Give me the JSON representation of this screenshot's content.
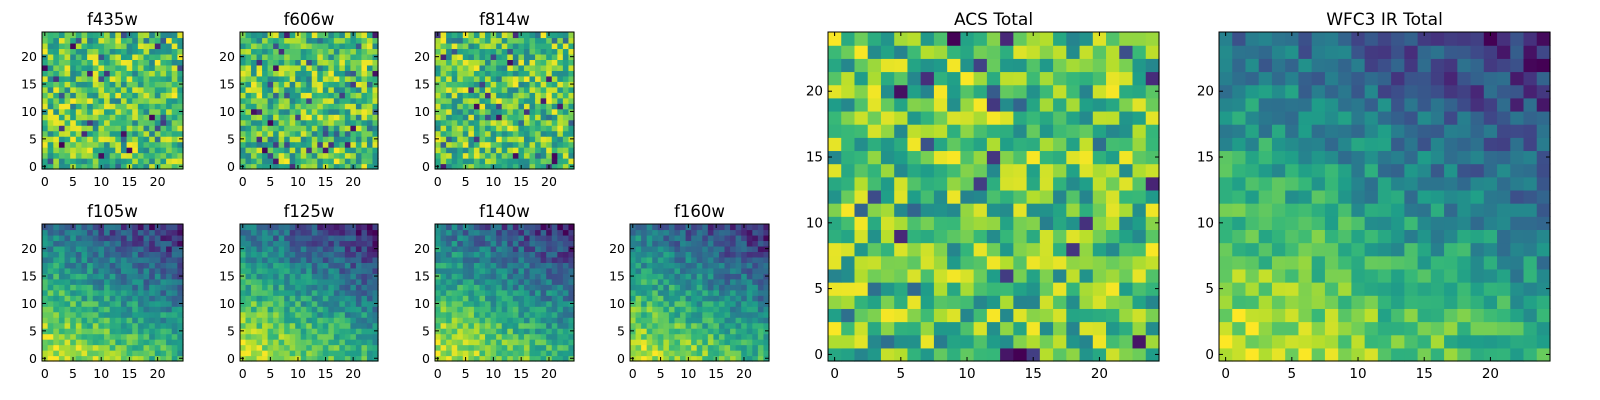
{
  "figure": {
    "background": "#ffffff"
  },
  "chart_data": [
    {
      "type": "heatmap",
      "title": "f435w",
      "pattern": "noise",
      "seed": 11,
      "grid": 25,
      "xlim": [
        0,
        24
      ],
      "ylim": [
        0,
        24
      ],
      "xticks": [
        0,
        5,
        10,
        15,
        20
      ],
      "yticks": [
        0,
        5,
        10,
        15,
        20
      ],
      "xlabel": "",
      "ylabel": "",
      "colormap": "viridis"
    },
    {
      "type": "heatmap",
      "title": "f606w",
      "pattern": "noise",
      "seed": 23,
      "grid": 25,
      "xlim": [
        0,
        24
      ],
      "ylim": [
        0,
        24
      ],
      "xticks": [
        0,
        5,
        10,
        15,
        20
      ],
      "yticks": [
        0,
        5,
        10,
        15,
        20
      ],
      "xlabel": "",
      "ylabel": "",
      "colormap": "viridis"
    },
    {
      "type": "heatmap",
      "title": "f814w",
      "pattern": "noise",
      "seed": 37,
      "grid": 25,
      "xlim": [
        0,
        24
      ],
      "ylim": [
        0,
        24
      ],
      "xticks": [
        0,
        5,
        10,
        15,
        20
      ],
      "yticks": [
        0,
        5,
        10,
        15,
        20
      ],
      "xlabel": "",
      "ylabel": "",
      "colormap": "viridis"
    },
    {
      "type": "heatmap",
      "title": "f105w",
      "pattern": "ir",
      "seed": 41,
      "grid": 25,
      "xlim": [
        0,
        24
      ],
      "ylim": [
        0,
        24
      ],
      "xticks": [
        0,
        5,
        10,
        15,
        20
      ],
      "yticks": [
        0,
        5,
        10,
        15,
        20
      ],
      "xlabel": "",
      "ylabel": "",
      "colormap": "viridis"
    },
    {
      "type": "heatmap",
      "title": "f125w",
      "pattern": "ir",
      "seed": 53,
      "grid": 25,
      "xlim": [
        0,
        24
      ],
      "ylim": [
        0,
        24
      ],
      "xticks": [
        0,
        5,
        10,
        15,
        20
      ],
      "yticks": [
        0,
        5,
        10,
        15,
        20
      ],
      "xlabel": "",
      "ylabel": "",
      "colormap": "viridis"
    },
    {
      "type": "heatmap",
      "title": "f140w",
      "pattern": "ir",
      "seed": 67,
      "grid": 25,
      "xlim": [
        0,
        24
      ],
      "ylim": [
        0,
        24
      ],
      "xticks": [
        0,
        5,
        10,
        15,
        20
      ],
      "yticks": [
        0,
        5,
        10,
        15,
        20
      ],
      "xlabel": "",
      "ylabel": "",
      "colormap": "viridis"
    },
    {
      "type": "heatmap",
      "title": "f160w",
      "pattern": "ir",
      "seed": 79,
      "grid": 25,
      "xlim": [
        0,
        24
      ],
      "ylim": [
        0,
        24
      ],
      "xticks": [
        0,
        5,
        10,
        15,
        20
      ],
      "yticks": [
        0,
        5,
        10,
        15,
        20
      ],
      "xlabel": "",
      "ylabel": "",
      "colormap": "viridis"
    },
    {
      "type": "heatmap",
      "title": "ACS Total",
      "pattern": "noise",
      "seed": 97,
      "grid": 25,
      "xlim": [
        0,
        24
      ],
      "ylim": [
        0,
        24
      ],
      "xticks": [
        0,
        5,
        10,
        15,
        20
      ],
      "yticks": [
        0,
        5,
        10,
        15,
        20
      ],
      "xlabel": "",
      "ylabel": "",
      "colormap": "viridis"
    },
    {
      "type": "heatmap",
      "title": "WFC3 IR Total",
      "pattern": "ir",
      "seed": 101,
      "grid": 25,
      "xlim": [
        0,
        24
      ],
      "ylim": [
        0,
        24
      ],
      "xticks": [
        0,
        5,
        10,
        15,
        20
      ],
      "yticks": [
        0,
        5,
        10,
        15,
        20
      ],
      "xlabel": "",
      "ylabel": "",
      "colormap": "viridis"
    }
  ]
}
